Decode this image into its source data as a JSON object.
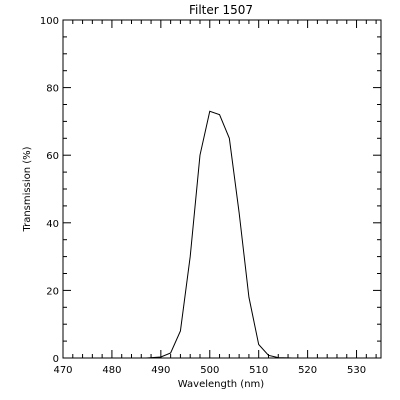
{
  "chart_data": {
    "type": "line",
    "title": "Filter 1507",
    "xlabel": "Wavelength (nm)",
    "ylabel": "Transmission (%)",
    "xlim": [
      470,
      535
    ],
    "ylim": [
      0,
      100
    ],
    "x_ticks": [
      "470",
      "480",
      "490",
      "500",
      "510",
      "520",
      "530"
    ],
    "y_ticks": [
      "0",
      "20",
      "40",
      "60",
      "80",
      "100"
    ],
    "grid": false,
    "series": [
      {
        "x": [
          487,
          490,
          492,
          494,
          496,
          498,
          500,
          502,
          504,
          506,
          508,
          510,
          512,
          514,
          517
        ],
        "y": [
          0,
          0.3,
          1.5,
          8,
          30,
          60,
          73,
          72,
          65,
          43,
          18,
          4,
          0.8,
          0.1,
          0
        ]
      }
    ]
  }
}
